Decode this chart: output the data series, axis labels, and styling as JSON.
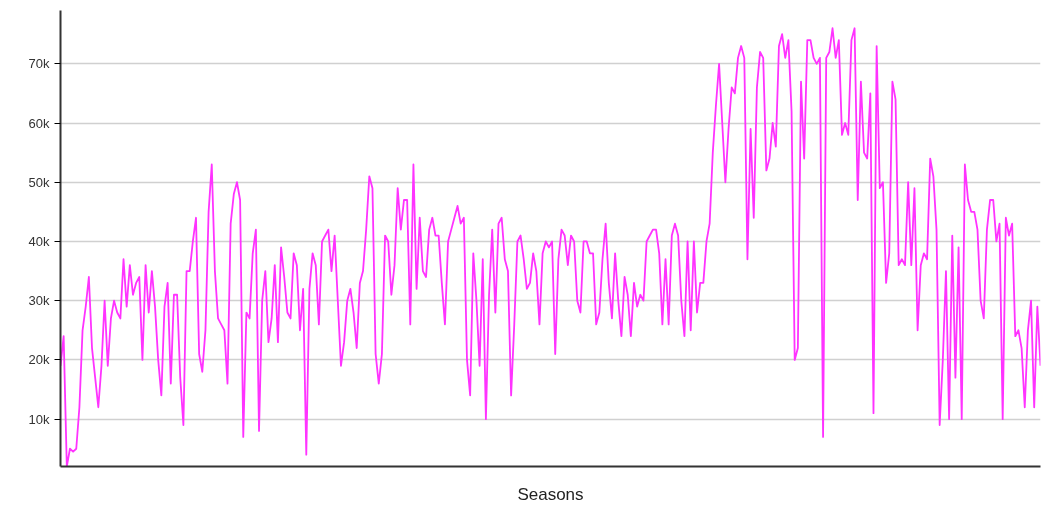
{
  "chart_data": {
    "type": "line",
    "xlabel": "Seasons",
    "categories": [
      null,
      null,
      null,
      null,
      null,
      null,
      null,
      null,
      null,
      null,
      null,
      null,
      null,
      null,
      null,
      null,
      null,
      null,
      null,
      null,
      null,
      null,
      null,
      null,
      null,
      null,
      null,
      null,
      null,
      null,
      null,
      null,
      null,
      null,
      null,
      null,
      null,
      null,
      null,
      null,
      null,
      null,
      null,
      null,
      null,
      null,
      null,
      null,
      null,
      null,
      null,
      null,
      null,
      null,
      null,
      null,
      null,
      null,
      null,
      null,
      null,
      null,
      null,
      null,
      null,
      null,
      null,
      null,
      null,
      null,
      null,
      null,
      null,
      null,
      null,
      null,
      null,
      null,
      null,
      null,
      null,
      null,
      null,
      null,
      null,
      null,
      null,
      null,
      null,
      null,
      null,
      null,
      null,
      null,
      null,
      null,
      null,
      null,
      null,
      null,
      null,
      null,
      null,
      null,
      null,
      null,
      null,
      null,
      null,
      null,
      null,
      null,
      null,
      null,
      null,
      null,
      null,
      null,
      null,
      null,
      null,
      null,
      null,
      null,
      null,
      null,
      null,
      null,
      null,
      null,
      null,
      null,
      null,
      null,
      null,
      null,
      null,
      null,
      null,
      null,
      null,
      null,
      null,
      null,
      null,
      null,
      null,
      null,
      null,
      null,
      null,
      null,
      null,
      null,
      null,
      null,
      null,
      null,
      null,
      null,
      null,
      null,
      null,
      null,
      null,
      null,
      null,
      null,
      null,
      null,
      null,
      null,
      null,
      null,
      null,
      null,
      null,
      null,
      null,
      null,
      null,
      null,
      null,
      null,
      null,
      null,
      null,
      null,
      null,
      null,
      null,
      null,
      null,
      null,
      null,
      null,
      null,
      null,
      null,
      null,
      null,
      null,
      null,
      null,
      null,
      null,
      null,
      null,
      null,
      null,
      null,
      null,
      null,
      null,
      null,
      null,
      null,
      null,
      null,
      null,
      null,
      null,
      null,
      null,
      null,
      null,
      null,
      null,
      null,
      null,
      null,
      null,
      null,
      null,
      null,
      null,
      null,
      null,
      null,
      null,
      null,
      null,
      null,
      null,
      null,
      null,
      null,
      null,
      null,
      null,
      null,
      null,
      null,
      null,
      null,
      null,
      null,
      null,
      null,
      null,
      null,
      null,
      null,
      null,
      null,
      null,
      null,
      null,
      null,
      null,
      null,
      null,
      null,
      null,
      null,
      null,
      null,
      null,
      null,
      null,
      null,
      null,
      null,
      null,
      null,
      null,
      null,
      null,
      null,
      null,
      null,
      null,
      null,
      null,
      null,
      null,
      null,
      null,
      null,
      null,
      null,
      null,
      null,
      null,
      null,
      null,
      null,
      null,
      null,
      null,
      null,
      null
    ],
    "series": [
      {
        "color": "#ff33ff",
        "values": [
          19000,
          24000,
          2000,
          5000,
          4500,
          5000,
          12000,
          25000,
          29000,
          34000,
          22000,
          17000,
          12000,
          19000,
          30000,
          19000,
          27000,
          30000,
          28000,
          27000,
          37000,
          29000,
          36000,
          31000,
          33000,
          34000,
          20000,
          36000,
          28000,
          35000,
          29000,
          20000,
          14000,
          29000,
          33000,
          16000,
          31000,
          31000,
          17000,
          9000,
          35000,
          35000,
          40000,
          44000,
          21000,
          18000,
          25000,
          45000,
          53000,
          35000,
          27000,
          26000,
          25000,
          16000,
          43000,
          48000,
          50000,
          47000,
          7000,
          28000,
          27000,
          38000,
          42000,
          8000,
          30000,
          35000,
          23000,
          27000,
          36000,
          23000,
          39000,
          34000,
          28000,
          27000,
          38000,
          36000,
          25000,
          32000,
          4000,
          32000,
          38000,
          36000,
          26000,
          40000,
          41000,
          42000,
          35000,
          41000,
          30000,
          19000,
          23000,
          30000,
          32000,
          28000,
          22000,
          33000,
          35000,
          42000,
          51000,
          49000,
          21000,
          16000,
          21000,
          41000,
          40000,
          31000,
          36000,
          49000,
          42000,
          47000,
          47000,
          26000,
          53000,
          32000,
          44000,
          35000,
          34000,
          42000,
          44000,
          41000,
          41000,
          33000,
          26000,
          40000,
          42000,
          44000,
          46000,
          43000,
          44000,
          20000,
          14000,
          38000,
          30000,
          19000,
          37000,
          10000,
          31000,
          42000,
          28000,
          43000,
          44000,
          37000,
          35000,
          14000,
          26000,
          40000,
          41000,
          37000,
          32000,
          33000,
          38000,
          35000,
          26000,
          38000,
          40000,
          39000,
          40000,
          21000,
          37000,
          42000,
          41000,
          36000,
          41000,
          40000,
          30000,
          28000,
          40000,
          40000,
          38000,
          38000,
          26000,
          28000,
          37000,
          43000,
          33000,
          27000,
          38000,
          30000,
          24000,
          34000,
          31000,
          24000,
          33000,
          29000,
          31000,
          30000,
          40000,
          41000,
          42000,
          42000,
          38000,
          26000,
          37000,
          26000,
          41000,
          43000,
          41000,
          30000,
          24000,
          40000,
          25000,
          40000,
          28000,
          33000,
          33000,
          40000,
          43000,
          55000,
          63000,
          70000,
          60000,
          50000,
          59000,
          66000,
          65000,
          71000,
          73000,
          71000,
          37000,
          59000,
          44000,
          66000,
          72000,
          71000,
          52000,
          54000,
          60000,
          56000,
          73000,
          75000,
          71000,
          74000,
          62000,
          20000,
          22000,
          67000,
          54000,
          74000,
          74000,
          71000,
          70000,
          71000,
          7000,
          71000,
          72000,
          76000,
          71000,
          74000,
          58000,
          60000,
          58000,
          74000,
          76000,
          47000,
          67000,
          55000,
          54000,
          65000,
          11000,
          73000,
          49000,
          50000,
          33000,
          38000,
          67000,
          64000,
          36000,
          37000,
          36000,
          50000,
          36000,
          49000,
          25000,
          36000,
          38000,
          37000,
          54000,
          51000,
          42000,
          9000,
          20000,
          35000,
          10000,
          41000,
          17000,
          39000,
          10000,
          53000,
          47000,
          45000,
          45000,
          42000,
          30000,
          27000,
          42000,
          47000,
          47000,
          40000,
          43000,
          10000,
          44000,
          41000,
          43000,
          24000,
          25000,
          22000,
          12000,
          25000,
          30000,
          12000,
          29000,
          19000
        ]
      }
    ],
    "ylim": [
      2000,
      79000
    ],
    "yticks": [
      {
        "value": 10000,
        "label": "10k"
      },
      {
        "value": 20000,
        "label": "20k"
      },
      {
        "value": 30000,
        "label": "30k"
      },
      {
        "value": 40000,
        "label": "40k"
      },
      {
        "value": 50000,
        "label": "50k"
      },
      {
        "value": 60000,
        "label": "60k"
      },
      {
        "value": 70000,
        "label": "70k"
      }
    ],
    "grid": "y",
    "tick_labels": "y",
    "marker": "none",
    "line_style": "solid"
  }
}
